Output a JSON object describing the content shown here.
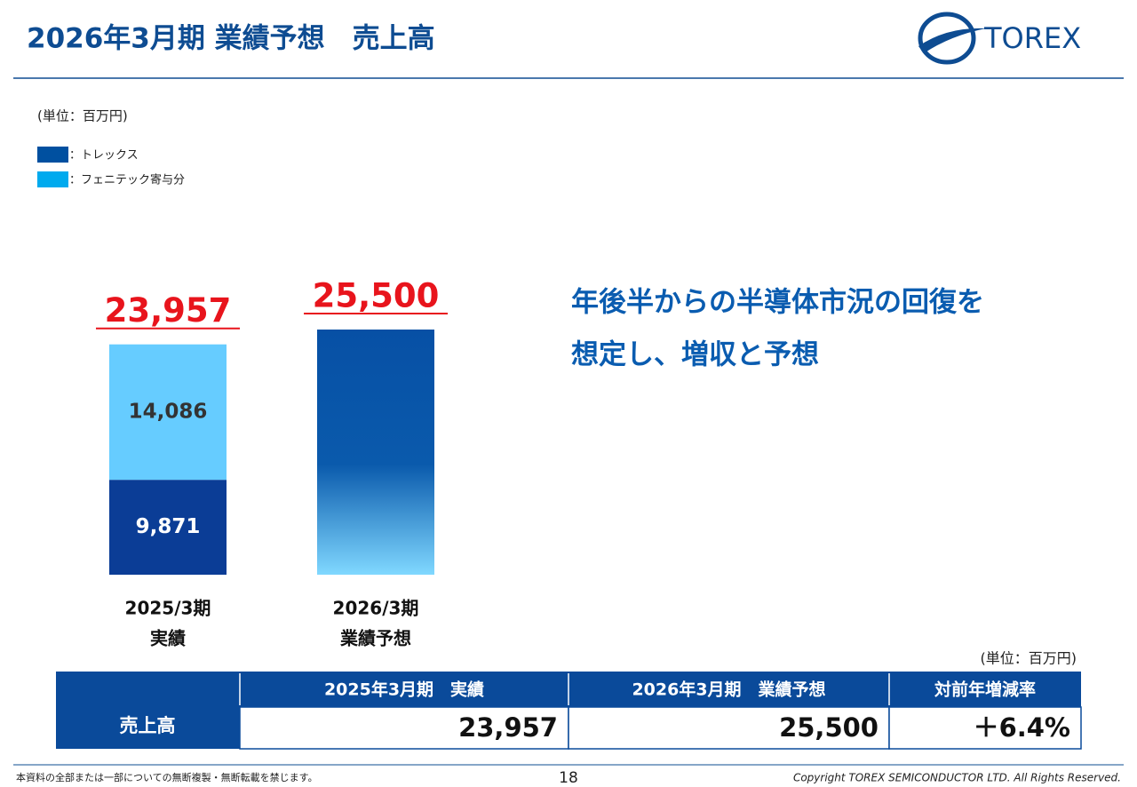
{
  "header": {
    "title": "2026年3月期 業績予想　売上高",
    "logo": "TOREX"
  },
  "chart_data": {
    "type": "bar",
    "stacked": true,
    "unit_label": "(単位：百万円)",
    "categories": [
      "2025/3期",
      "2026/3期"
    ],
    "category_sublabels": [
      "実績",
      "業績予想"
    ],
    "series": [
      {
        "name": "：トレックス",
        "color": "#0b3d96",
        "legend_color": "#0050a0",
        "values": [
          9871,
          25500
        ],
        "value_labels": [
          "9,871",
          null
        ]
      },
      {
        "name": "：フェニテック寄与分",
        "color": "#66ccff",
        "legend_color": "#00aaee",
        "values": [
          14086,
          null
        ],
        "value_labels": [
          "14,086",
          null
        ]
      }
    ],
    "totals": [
      23957,
      25500
    ],
    "total_labels": [
      "23,957",
      "25,500"
    ],
    "total_color": "#e8141c",
    "gradient_categories": [
      1
    ]
  },
  "message": [
    "年後半からの半導体市況の回復を",
    "想定し、増収と予想"
  ],
  "table": {
    "unit_label": "(単位：百万円)",
    "header": [
      "2025年3月期　実績",
      "2026年3月期　業績予想",
      "対前年増減率"
    ],
    "rows": [
      {
        "label": "売上高",
        "cells": [
          "23,957",
          "25,500",
          "＋6.4%"
        ]
      }
    ]
  },
  "footer": {
    "notice": "本資料の全部または一部についての無断複製・無断転載を禁じます。",
    "page": "18",
    "copyright": "Copyright TOREX SEMICONDUCTOR LTD.  All Rights Reserved."
  }
}
